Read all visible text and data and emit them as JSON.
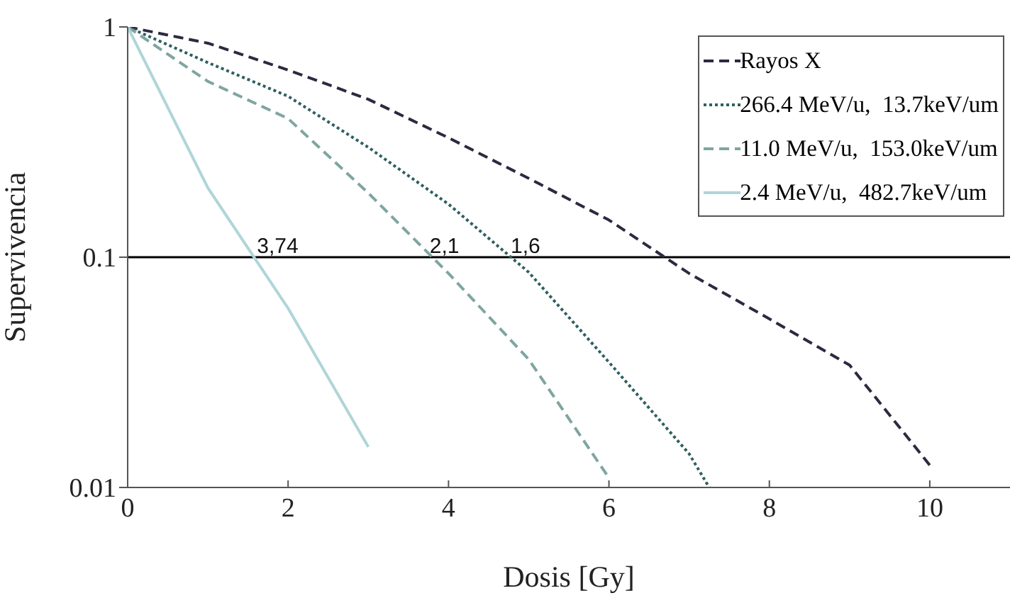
{
  "chart_data": {
    "type": "line",
    "xlabel": "Dosis [Gy]",
    "ylabel": "Supervivencia",
    "x": [
      0,
      1,
      2,
      3,
      4,
      5,
      6,
      7,
      8,
      9,
      10
    ],
    "series": [
      {
        "name": "Rayos X",
        "color": "#2a2a40",
        "line_style": "dashed",
        "values": [
          1,
          0.85,
          0.65,
          0.485,
          0.33,
          0.22,
          0.145,
          0.085,
          0.054,
          0.034,
          0.0125
        ]
      },
      {
        "name": "266.4 MeV/u,  13.7keV/um",
        "color": "#2f5f60",
        "line_style": "dotted",
        "x": [
          0,
          1,
          2,
          3,
          4,
          5,
          6,
          7,
          7.25
        ],
        "values": [
          1,
          0.7,
          0.5,
          0.3,
          0.17,
          0.086,
          0.035,
          0.014,
          0.01
        ]
      },
      {
        "name": "11.0 MeV/u,  153.0keV/um",
        "color": "#7fa5a0",
        "line_style": "dashed",
        "x": [
          0,
          1,
          2,
          3,
          4,
          5,
          6
        ],
        "values": [
          1,
          0.58,
          0.4,
          0.19,
          0.085,
          0.036,
          0.011
        ]
      },
      {
        "name": "2.4 MeV/u,  482.7keV/um",
        "color": "#b0d5d8",
        "line_style": "solid",
        "x": [
          0,
          1,
          2,
          3
        ],
        "values": [
          1,
          0.2,
          0.06,
          0.015
        ]
      }
    ],
    "xlim": [
      0,
      11
    ],
    "xticks": [
      0,
      2,
      4,
      6,
      8,
      10
    ],
    "ylim": [
      0.01,
      1
    ],
    "yticks": [
      0.01,
      0.1,
      1
    ],
    "log": true,
    "ref_lines": [
      {
        "axis": "y",
        "value": 0.1,
        "color": "#000000"
      }
    ],
    "annotations": [
      {
        "text": "3,74",
        "x": 1.87,
        "y": 0.1
      },
      {
        "text": "2,1",
        "x": 3.95,
        "y": 0.1
      },
      {
        "text": "1,6",
        "x": 4.96,
        "y": 0.1
      }
    ],
    "legend": "top right",
    "grid": false,
    "marker": "none"
  }
}
